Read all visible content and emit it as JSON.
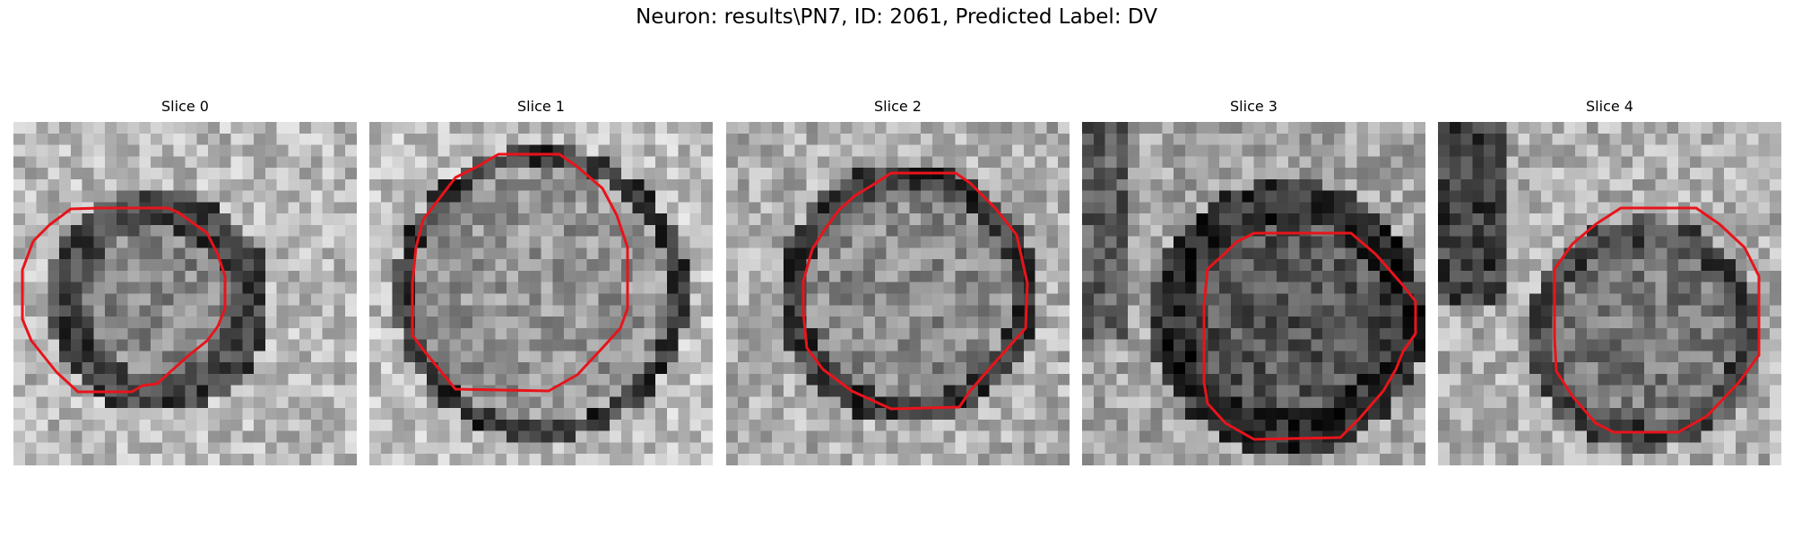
{
  "figure": {
    "title": "Neuron: results\\PN7, ID: 2061, Predicted Label: DV"
  },
  "contour_color": "#e8141b",
  "panels": [
    {
      "title": "Slice 0",
      "image": "grayscale-slice-0"
    },
    {
      "title": "Slice 1",
      "image": "grayscale-slice-1"
    },
    {
      "title": "Slice 2",
      "image": "grayscale-slice-2"
    },
    {
      "title": "Slice 3",
      "image": "grayscale-slice-3"
    },
    {
      "title": "Slice 4",
      "image": "grayscale-slice-4"
    }
  ]
}
